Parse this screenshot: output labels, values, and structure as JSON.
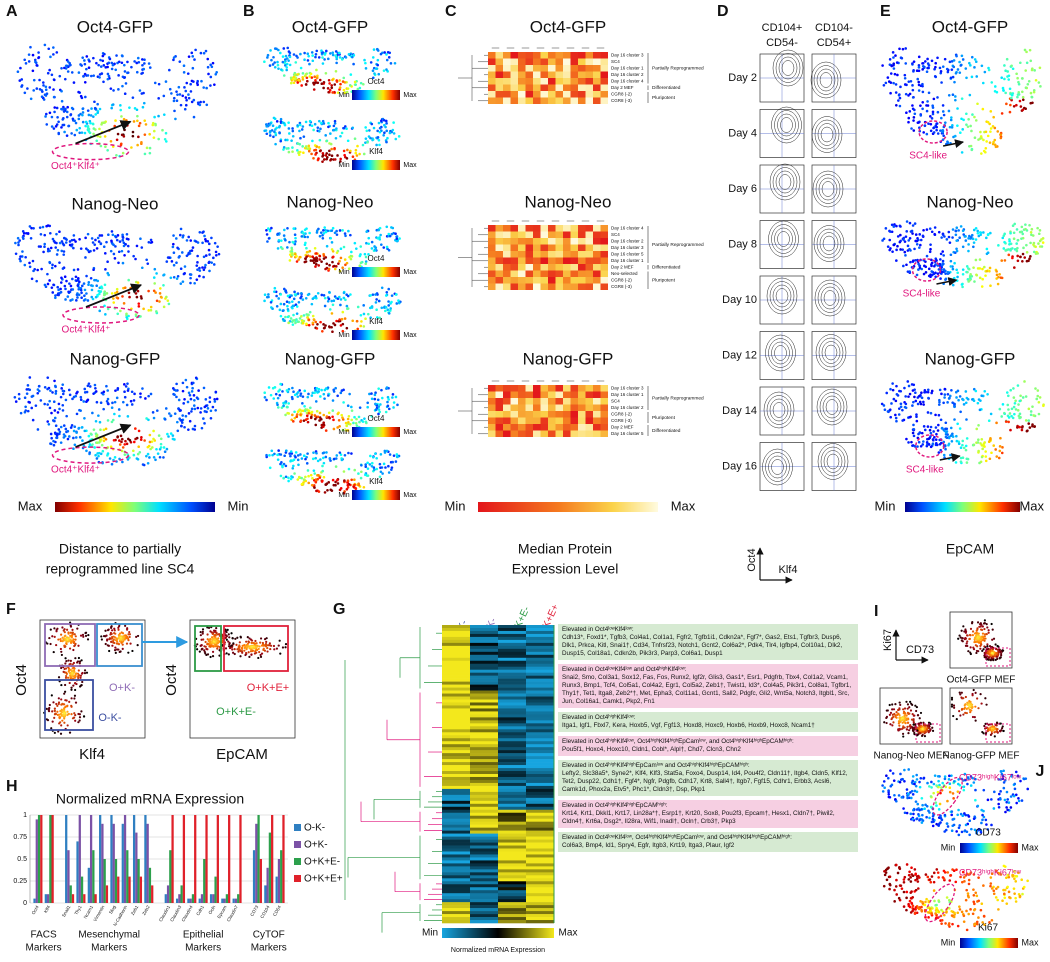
{
  "panels": {
    "A": {
      "label": "A",
      "titles": [
        "Oct4-GFP",
        "Nanog-Neo",
        "Nanog-GFP"
      ],
      "annotations": [
        "Oct4⁺Klf4⁺",
        "Oct4⁺Klf4⁺",
        "Oct4⁺Klf4⁺"
      ],
      "colorbar": {
        "left": "Max",
        "right": "Min"
      },
      "caption": [
        "Distance to partially",
        "reprogrammed line SC4"
      ]
    },
    "B": {
      "label": "B",
      "titles": [
        "Oct4-GFP",
        "Nanog-Neo",
        "Nanog-GFP"
      ],
      "markers": [
        "Oct4",
        "Klf4"
      ],
      "colorbar": {
        "left": "Min",
        "right": "Max"
      }
    },
    "C": {
      "label": "C",
      "heatmaps": [
        {
          "title": "Oct4-GFP",
          "rows": [
            "Day 16 cluster 3",
            "SC4",
            "Day 16 cluster 1",
            "Day 16 cluster 2",
            "Day 16 cluster 4",
            "Day 2 MEF",
            "CGR8 (-2)",
            "CGR8 (-3)"
          ],
          "groups": [
            "Partially Reprogrammed",
            "Differentiated",
            "Pluripotent"
          ]
        },
        {
          "title": "Nanog-Neo",
          "rows": [
            "Day 16 cluster 4",
            "SC4",
            "Day 16 cluster 2",
            "Day 16 cluster 3",
            "Day 16 cluster 5",
            "Day 16 cluster 1",
            "Day 2 MEF",
            "Neo-selected",
            "CGR8 (-2)",
            "CGR8 (-3)"
          ],
          "groups": [
            "Partially Reprogrammed",
            "Differentiated",
            "Pluripotent"
          ]
        },
        {
          "title": "Nanog-GFP",
          "rows": [
            "Day 16 cluster 3",
            "Day 16 cluster 1",
            "SC4",
            "Day 16 cluster 2",
            "CGR8 (-2)",
            "CGR8 (-3)",
            "Day 2 MEF",
            "Day 16 cluster 5"
          ],
          "groups": [
            "Partially Reprogrammed",
            "Pluripotent",
            "Differentiated"
          ]
        }
      ],
      "colorbar": {
        "left": "Min",
        "right": "Max"
      },
      "caption": [
        "Median Protein",
        "Expression Level"
      ]
    },
    "D": {
      "label": "D",
      "columns": [
        [
          "CD104+",
          "CD54-"
        ],
        [
          "CD104-",
          "CD54+"
        ]
      ],
      "days": [
        "Day 2",
        "Day 4",
        "Day 6",
        "Day 8",
        "Day 10",
        "Day 12",
        "Day 14",
        "Day 16"
      ],
      "y_axis": "Oct4",
      "x_axis": "Klf4"
    },
    "E": {
      "label": "E",
      "titles": [
        "Oct4-GFP",
        "Nanog-Neo",
        "Nanog-GFP"
      ],
      "annotations": [
        "SC4-like",
        "SC4-like",
        "SC4-like"
      ],
      "colorbar": {
        "left": "Min",
        "right": "Max"
      },
      "caption": "EpCAM"
    },
    "F": {
      "label": "F",
      "y_axis": [
        "Oct4",
        "Oct4"
      ],
      "x_axis": [
        "Klf4",
        "EpCAM"
      ],
      "gates": [
        "O+K-",
        "O-K-",
        "O+K+E+",
        "O+K+E-"
      ]
    },
    "G": {
      "label": "G",
      "columns": [
        "O-K-",
        "O+K-",
        "O+K+E-",
        "O+K+E+"
      ],
      "boxes": [
        {
          "heading": "Elevated in Oct4ˡᵒʷKlf4ˡᵒʷ:",
          "genes": "Cdh13*, Foxd1*, Tgfb3, Col4a1, Col1a1, Fgfr2, Tgfb1i1, Cdkn2a*, Fgf7*, Gas2, Ets1, Tgfbr3, Dusp6, Dlk1, Prkca, Kitl, Snai1†, Cd34, Tnfrsf23, Notch1, Gcnt2, Col6a2*, Pdk4, Tlr4, Igfbp4, Col10a1, Dlk2, Dusp15, Col18a1, Cdkn2b, Pik3r3, Parp3, Col6a1, Dusp1"
        },
        {
          "heading": "Elevated in Oct4ˡᵒʷKlf4ˡᵒʷ and Oct4ʰⁱᵍʰKlf4ˡᵒʷ:",
          "genes": "Snai2, Smo, Col3a1, Sox12, Fas, Fos, Runx2, Igf2r, Glis3, Gas1*, Esr1, Pdgfrb, Tbx4, Col1a2, Vcam1, Runx3, Bmp1, Tcf4, Col5a1, Col4a2, Egr1, Col5a2, Zeb1†, Twist1, Id3*, Col4a5, Pik3r1, Col8a1, Tgfbr1, Thy1†, Tet1, Itga8, Zeb2*†, Met, Epha3, Col11a1, Gcnt1, Sall2, Pdgfc, Gli2, Wnt5a, Notch3, Itgbl1, Src, Jun, Col16a1, Camk1, Pkp2, Fn1"
        },
        {
          "heading": "Elevated in Oct4ʰⁱᵍʰKlf4ˡᵒʷ:",
          "genes": "Itga1, Igf1, Fbxl7, Kera, Hoxb5, Vgf, Fgf13, Hoxd8, Hoxc9, Hoxb6, Hoxb9, Hoxc8, Ncam1†"
        },
        {
          "heading": "Elevated in Oct4ʰⁱᵍʰKlf4ˡᵒʷ, Oct4ʰⁱᵍʰKlf4ʰⁱᵍʰEpCamˡᵒʷ, and Oct4ʰⁱᵍʰKlf4ʰⁱᵍʰEpCAMʰⁱᵍʰ:",
          "genes": "Pou5f1, Hoxc4, Hoxc10, Cldn1, Cobl*, Alpl†, Chd7, Clcn3, Chn2"
        },
        {
          "heading": "Elevated in Oct4ʰⁱᵍʰKlf4ʰⁱᵍʰEpCamˡᵒʷ and Oct4ʰⁱᵍʰKlf4ʰⁱᵍʰEpCAMʰⁱᵍʰ:",
          "genes": "Lefty2, Slc38a5*, Syne2*, Klf4, Klf3, Stat5a, Foxo4, Dusp14, Id4, Pou4f2, Cldn11†, Itgb4, Cldn5, Klf12, Tet2, Dusp22, Cdh1†, Fgf4*, Ngfr, Pdgfb, Cdh17, Krt8, Sall4†, Itgb7, Fgf15, Cdhr1, Erbb3, Acsl6, Camk1d, Phox2a, Etv5*, Phc1*, Cldn3†, Dsp, Pkp1"
        },
        {
          "heading": "Elevated in Oct4ʰⁱᵍʰKlf4ʰⁱᵍʰEpCAMʰⁱᵍʰ:",
          "genes": "Krt14, Krt1, Dkkl1, Krt17, Lin28a*†, Esrp1†, Krt20, Sox8, Pou2f3, Epcam†, Hesx1, Cldn7†, Piwil2, Cldn4†, Krt6a, Dsg2*, Il28ra, Wif1, Inadl†, Ocln†, Crb3†, Pkp3"
        },
        {
          "heading": "Elevated in Oct4ˡᵒʷKlf4ˡᵒʷ, Oct4ʰⁱᵍʰKlf4ʰⁱᵍʰEpCamˡᵒʷ, and Oct4ʰⁱᵍʰKlf4ʰⁱᵍʰEpCAMʰⁱᵍʰ:",
          "genes": "Col6a3, Bmp4, Id1, Spry4, Egfr, Itgb3, Krt19, Itga3, Plaur, Igf2"
        }
      ],
      "colorbar": {
        "left": "Min",
        "right": "Max"
      },
      "caption": "Normalized mRNA Expression"
    },
    "H": {
      "label": "H",
      "groups": [
        [
          "FACS",
          "Markers"
        ],
        [
          "Mesenchymal",
          "Markers"
        ],
        [
          "Epithelial",
          "Markers"
        ],
        [
          "CyTOF",
          "Markers"
        ]
      ]
    },
    "I": {
      "label": "I",
      "y_axis": "Ki67",
      "x_axis": "CD73",
      "plots": [
        "Oct4-GFP MEF",
        "Nanog-Neo MEF",
        "Nanog-GFP MEF"
      ]
    },
    "J": {
      "label": "J",
      "annotations": [
        "CD73ʰⁱᵍʰKi67ˡᵒʷ",
        "CD73ʰⁱᵍʰKi67ˡᵒʷ"
      ],
      "markers": [
        "CD73",
        "Ki67"
      ],
      "colorbar": {
        "left": "Min",
        "right": "Max"
      }
    }
  },
  "chart_data": {
    "type": "bar",
    "title": "Normalized mRNA Expression",
    "categories": [
      "Oct4",
      "Klf4",
      "Snail1",
      "Thy1",
      "Ncam1",
      "Vimentin",
      "Slug",
      "N-Cadherin",
      "Zeb1",
      "Zeb2",
      "Claudin1",
      "Claudin3",
      "Claudin4",
      "Cdh1",
      "Ocln",
      "Epcam",
      "Claudin7",
      "CD73",
      "CD104",
      "CD54"
    ],
    "series": [
      {
        "name": "O-K-",
        "color": "#2f7fc1",
        "values": [
          0.05,
          0.1,
          1,
          0.7,
          0.4,
          1,
          1,
          0.9,
          1,
          1,
          0.1,
          0.05,
          0.05,
          0.05,
          0.1,
          0.05,
          0.05,
          0.6,
          0.2,
          0.3
        ]
      },
      {
        "name": "O+K-",
        "color": "#7b52a6",
        "values": [
          0.95,
          0.1,
          0.6,
          1,
          1,
          0.9,
          0.9,
          1,
          0.8,
          0.9,
          0.2,
          0.1,
          0.05,
          0.1,
          0.1,
          0.05,
          0.05,
          0.9,
          0.4,
          0.5
        ]
      },
      {
        "name": "O+K+E-",
        "color": "#2ca04c",
        "values": [
          1,
          1,
          0.2,
          0.3,
          0.6,
          0.5,
          0.5,
          0.6,
          0.5,
          0.4,
          0.6,
          0.2,
          0.1,
          0.5,
          0.3,
          0.1,
          0.1,
          1,
          0.8,
          0.6
        ]
      },
      {
        "name": "O+K+E+",
        "color": "#e0212a",
        "values": [
          1,
          1,
          0.1,
          0.1,
          0.1,
          0.2,
          0.3,
          0.3,
          0.3,
          0.2,
          1,
          1,
          1,
          1,
          1,
          1,
          1,
          0.5,
          1,
          1
        ]
      }
    ],
    "ylim": [
      0,
      1
    ],
    "yticks": [
      0,
      0.25,
      0.5,
      0.75,
      1
    ],
    "grid": true
  }
}
